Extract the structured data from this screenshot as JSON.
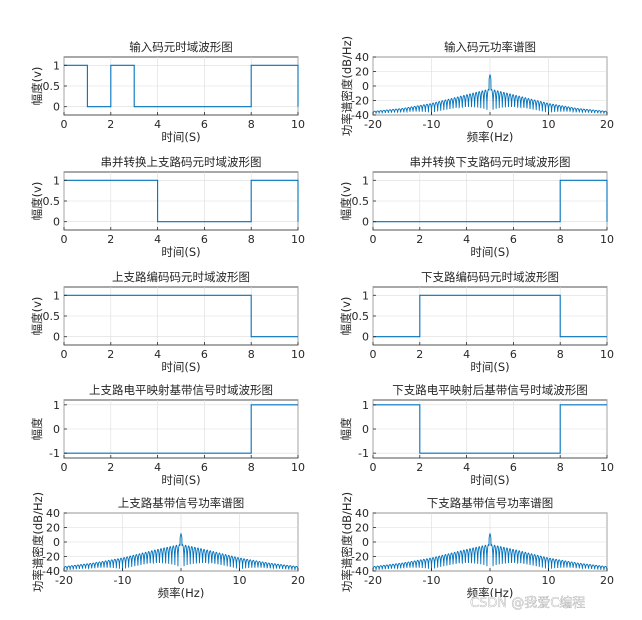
{
  "watermark": "CSDN @我爱C编程",
  "colors": {
    "line": "#0072bd",
    "grid": "#dcdcdc",
    "axis": "#262626"
  },
  "chart_data": [
    {
      "id": "input-wave",
      "type": "line",
      "step": true,
      "title": "输入码元时域波形图",
      "xlabel": "时间(S)",
      "ylabel": "幅度(v)",
      "xlim": [
        0,
        10
      ],
      "ylim": [
        -0.2,
        1.2
      ],
      "xticks": [
        0,
        2,
        4,
        6,
        8,
        10
      ],
      "yticks": [
        0,
        0.5,
        1
      ],
      "ytick_labels": [
        "0",
        "0.5",
        "1"
      ],
      "grid": true,
      "x": [
        0,
        1,
        1,
        2,
        2,
        3,
        3,
        8,
        8,
        10,
        10
      ],
      "y": [
        1,
        1,
        0,
        0,
        1,
        1,
        0,
        0,
        1,
        1,
        0
      ]
    },
    {
      "id": "input-psd",
      "type": "line",
      "psd": true,
      "title": "输入码元功率谱图",
      "xlabel": "频率(Hz)",
      "ylabel": "功率谱密度(dB/Hz)",
      "xlim": [
        -20,
        20
      ],
      "ylim": [
        -40,
        40
      ],
      "xticks": [
        -20,
        -10,
        0,
        10,
        20
      ],
      "yticks": [
        -40,
        -20,
        0,
        20,
        40
      ],
      "ytick_labels": [
        "-40",
        "-20",
        "0",
        "20",
        "40"
      ],
      "grid": true,
      "peak_db": 16,
      "floor_db": -39,
      "envelope_db": [
        -4,
        -14,
        -24,
        -31,
        -35
      ]
    },
    {
      "id": "sp-upper",
      "type": "line",
      "step": true,
      "title": "串并转换上支路码元时域波形图",
      "xlabel": "时间(S)",
      "ylabel": "幅度(v)",
      "xlim": [
        0,
        10
      ],
      "ylim": [
        -0.2,
        1.2
      ],
      "xticks": [
        0,
        2,
        4,
        6,
        8,
        10
      ],
      "yticks": [
        0,
        0.5,
        1
      ],
      "ytick_labels": [
        "0",
        "0.5",
        "1"
      ],
      "grid": true,
      "x": [
        0,
        4,
        4,
        8,
        8,
        10,
        10
      ],
      "y": [
        1,
        1,
        0,
        0,
        1,
        1,
        0
      ]
    },
    {
      "id": "sp-lower",
      "type": "line",
      "step": true,
      "title": "串并转换下支路码元时域波形图",
      "xlabel": "时间(S)",
      "ylabel": "幅度(v)",
      "xlim": [
        0,
        10
      ],
      "ylim": [
        -0.2,
        1.2
      ],
      "xticks": [
        0,
        2,
        4,
        6,
        8,
        10
      ],
      "yticks": [
        0,
        0.5,
        1
      ],
      "ytick_labels": [
        "0",
        "0.5",
        "1"
      ],
      "grid": true,
      "x": [
        0,
        8,
        8,
        10,
        10
      ],
      "y": [
        0,
        0,
        1,
        1,
        0
      ]
    },
    {
      "id": "enc-upper",
      "type": "line",
      "step": true,
      "title": "上支路编码码元时域波形图",
      "xlabel": "时间(S)",
      "ylabel": "幅度(v)",
      "xlim": [
        0,
        10
      ],
      "ylim": [
        -0.2,
        1.2
      ],
      "xticks": [
        0,
        2,
        4,
        6,
        8,
        10
      ],
      "yticks": [
        0,
        0.5,
        1
      ],
      "ytick_labels": [
        "0",
        "0.5",
        "1"
      ],
      "grid": true,
      "x": [
        0,
        8,
        8,
        10
      ],
      "y": [
        1,
        1,
        0,
        0
      ]
    },
    {
      "id": "enc-lower",
      "type": "line",
      "step": true,
      "title": "下支路编码码元时域波形图",
      "xlabel": "时间(S)",
      "ylabel": "幅度(v)",
      "xlim": [
        0,
        10
      ],
      "ylim": [
        -0.2,
        1.2
      ],
      "xticks": [
        0,
        2,
        4,
        6,
        8,
        10
      ],
      "yticks": [
        0,
        0.5,
        1
      ],
      "ytick_labels": [
        "0",
        "0.5",
        "1"
      ],
      "grid": true,
      "x": [
        0,
        2,
        2,
        8,
        8,
        10
      ],
      "y": [
        0,
        0,
        1,
        1,
        0,
        0
      ]
    },
    {
      "id": "map-upper",
      "type": "line",
      "step": true,
      "title": "上支路电平映射基带信号时域波形图",
      "xlabel": "时间(S)",
      "ylabel": "幅度",
      "xlim": [
        0,
        10
      ],
      "ylim": [
        -1.2,
        1.2
      ],
      "xticks": [
        0,
        2,
        4,
        6,
        8,
        10
      ],
      "yticks": [
        -1,
        0,
        1
      ],
      "ytick_labels": [
        "-1",
        "0",
        "1"
      ],
      "grid": true,
      "x": [
        0,
        8,
        8,
        10
      ],
      "y": [
        -1,
        -1,
        1,
        1
      ]
    },
    {
      "id": "map-lower",
      "type": "line",
      "step": true,
      "title": "下支路电平映射后基带信号时域波形图",
      "xlabel": "时间(S)",
      "ylabel": "幅度",
      "xlim": [
        0,
        10
      ],
      "ylim": [
        -1.2,
        1.2
      ],
      "xticks": [
        0,
        2,
        4,
        6,
        8,
        10
      ],
      "yticks": [
        -1,
        0,
        1
      ],
      "ytick_labels": [
        "-1",
        "0",
        "1"
      ],
      "grid": true,
      "x": [
        0,
        2,
        2,
        8,
        8,
        10
      ],
      "y": [
        1,
        1,
        -1,
        -1,
        1,
        1
      ]
    },
    {
      "id": "psd-upper",
      "type": "line",
      "psd": true,
      "title": "上支路基带信号功率谱图",
      "xlabel": "频率(Hz)",
      "ylabel": "功率谱密度(dB/Hz)",
      "xlim": [
        -20,
        20
      ],
      "ylim": [
        -40,
        40
      ],
      "xticks": [
        -20,
        -10,
        0,
        10,
        20
      ],
      "yticks": [
        -40,
        -20,
        0,
        20,
        40
      ],
      "ytick_labels": [
        "-40",
        "-20",
        "0",
        "20",
        "40"
      ],
      "grid": true,
      "peak_db": 12,
      "floor_db": -40,
      "envelope_db": [
        -3,
        -12,
        -22,
        -29,
        -34
      ]
    },
    {
      "id": "psd-lower",
      "type": "line",
      "psd": true,
      "title": "下支路基带信号功率谱图",
      "xlabel": "频率(Hz)",
      "ylabel": "功率谱密度(dB/Hz)",
      "xlim": [
        -20,
        20
      ],
      "ylim": [
        -40,
        40
      ],
      "xticks": [
        -20,
        -10,
        0,
        10,
        20
      ],
      "yticks": [
        -40,
        -20,
        0,
        20,
        40
      ],
      "ytick_labels": [
        "-40",
        "-20",
        "0",
        "20",
        "40"
      ],
      "grid": true,
      "peak_db": 12,
      "floor_db": -40,
      "envelope_db": [
        -3,
        -12,
        -22,
        -29,
        -34
      ]
    }
  ]
}
